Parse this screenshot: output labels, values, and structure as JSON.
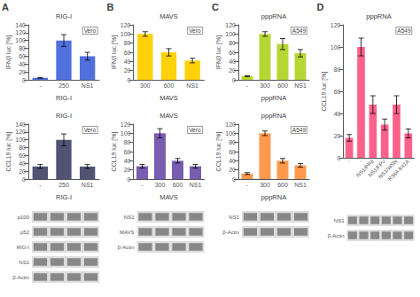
{
  "chart_data": [
    {
      "type": "bar",
      "title": "RIG-I",
      "subtitle": "Vero",
      "annotations": [
        "A"
      ],
      "categories": [
        "-",
        "250",
        "NS1"
      ],
      "values": [
        5,
        100,
        60
      ],
      "errors": [
        1,
        15,
        10
      ],
      "ylabel": "IFNβ luc [%]",
      "ylim": [
        0,
        140
      ],
      "yticks": [
        0,
        20,
        40,
        60,
        80,
        100,
        120,
        140
      ],
      "grid": false
    },
    {
      "type": "bar",
      "title": "RIG-I",
      "subtitle": "Vero",
      "categories": [
        "-",
        "250",
        "NS1"
      ],
      "values": [
        32,
        100,
        32
      ],
      "errors": [
        5,
        15,
        5
      ],
      "ylabel": "CCL19 luc [%]",
      "ylim": [
        0,
        140
      ],
      "yticks": [
        0,
        20,
        40,
        60,
        80,
        100,
        120,
        140
      ],
      "grid": false
    },
    {
      "type": "blot",
      "categories": [
        "p100",
        "p52",
        "RIG-I",
        "NS1",
        "β-Actin"
      ],
      "lanes": 4
    },
    {
      "type": "bar",
      "title": "MAVS",
      "subtitle": "Vero",
      "annotations": [
        "B"
      ],
      "categories": [
        "300",
        "600",
        "NS1"
      ],
      "values": [
        100,
        60,
        42
      ],
      "errors": [
        5,
        8,
        5
      ],
      "ylabel": "IFNβ luc [%]",
      "ylim": [
        0,
        120
      ],
      "yticks": [
        0,
        20,
        40,
        60,
        80,
        100,
        120
      ],
      "grid": false
    },
    {
      "type": "bar",
      "title": "MAVS",
      "subtitle": "Vero",
      "categories": [
        "-",
        "300",
        "600",
        "NS1"
      ],
      "values": [
        28,
        100,
        40,
        28
      ],
      "errors": [
        4,
        10,
        5,
        4
      ],
      "ylabel": "CCL19 luc [%]",
      "ylim": [
        0,
        120
      ],
      "yticks": [
        0,
        20,
        40,
        60,
        80,
        100,
        120
      ],
      "grid": false
    },
    {
      "type": "blot",
      "categories": [
        "NS1",
        "MAVS",
        "β-Actin"
      ],
      "lanes": 4
    },
    {
      "type": "bar",
      "title": "pppRNA",
      "subtitle": "A549",
      "annotations": [
        "C"
      ],
      "categories": [
        "-",
        "300",
        "600",
        "NS1"
      ],
      "values": [
        8,
        100,
        78,
        58
      ],
      "errors": [
        1,
        5,
        12,
        8
      ],
      "ylabel": "IFNβ luc [%]",
      "ylim": [
        0,
        120
      ],
      "yticks": [
        0,
        20,
        40,
        60,
        80,
        100,
        120
      ],
      "grid": false
    },
    {
      "type": "bar",
      "title": "pppRNA",
      "subtitle": "A549",
      "categories": [
        "-",
        "300",
        "600",
        "NS1"
      ],
      "values": [
        12,
        100,
        40,
        30
      ],
      "errors": [
        2,
        5,
        5,
        4
      ],
      "ylabel": "CCL19 luc [%]",
      "ylim": [
        0,
        120
      ],
      "yticks": [
        0,
        20,
        40,
        60,
        80,
        100,
        120
      ],
      "grid": false
    },
    {
      "type": "blot",
      "categories": [
        "NS1",
        "β-Actin"
      ],
      "lanes": 4
    },
    {
      "type": "bar",
      "title": "pppRNA",
      "subtitle": "A549",
      "annotations": [
        "D"
      ],
      "categories": [
        "-",
        "-",
        "NS1/PR8",
        "NS1/FPV",
        "NS1/WSN",
        "R38A K41A"
      ],
      "values": [
        18,
        100,
        48,
        30,
        48,
        22
      ],
      "errors": [
        3,
        8,
        8,
        5,
        8,
        4
      ],
      "ylabel": "CCL19 luc [%]",
      "ylim": [
        0,
        120
      ],
      "yticks": [
        0,
        20,
        40,
        60,
        80,
        100,
        120
      ],
      "grid": false
    },
    {
      "type": "blot",
      "categories": [
        "NS1",
        "β-Actin"
      ],
      "lanes": 6
    }
  ]
}
